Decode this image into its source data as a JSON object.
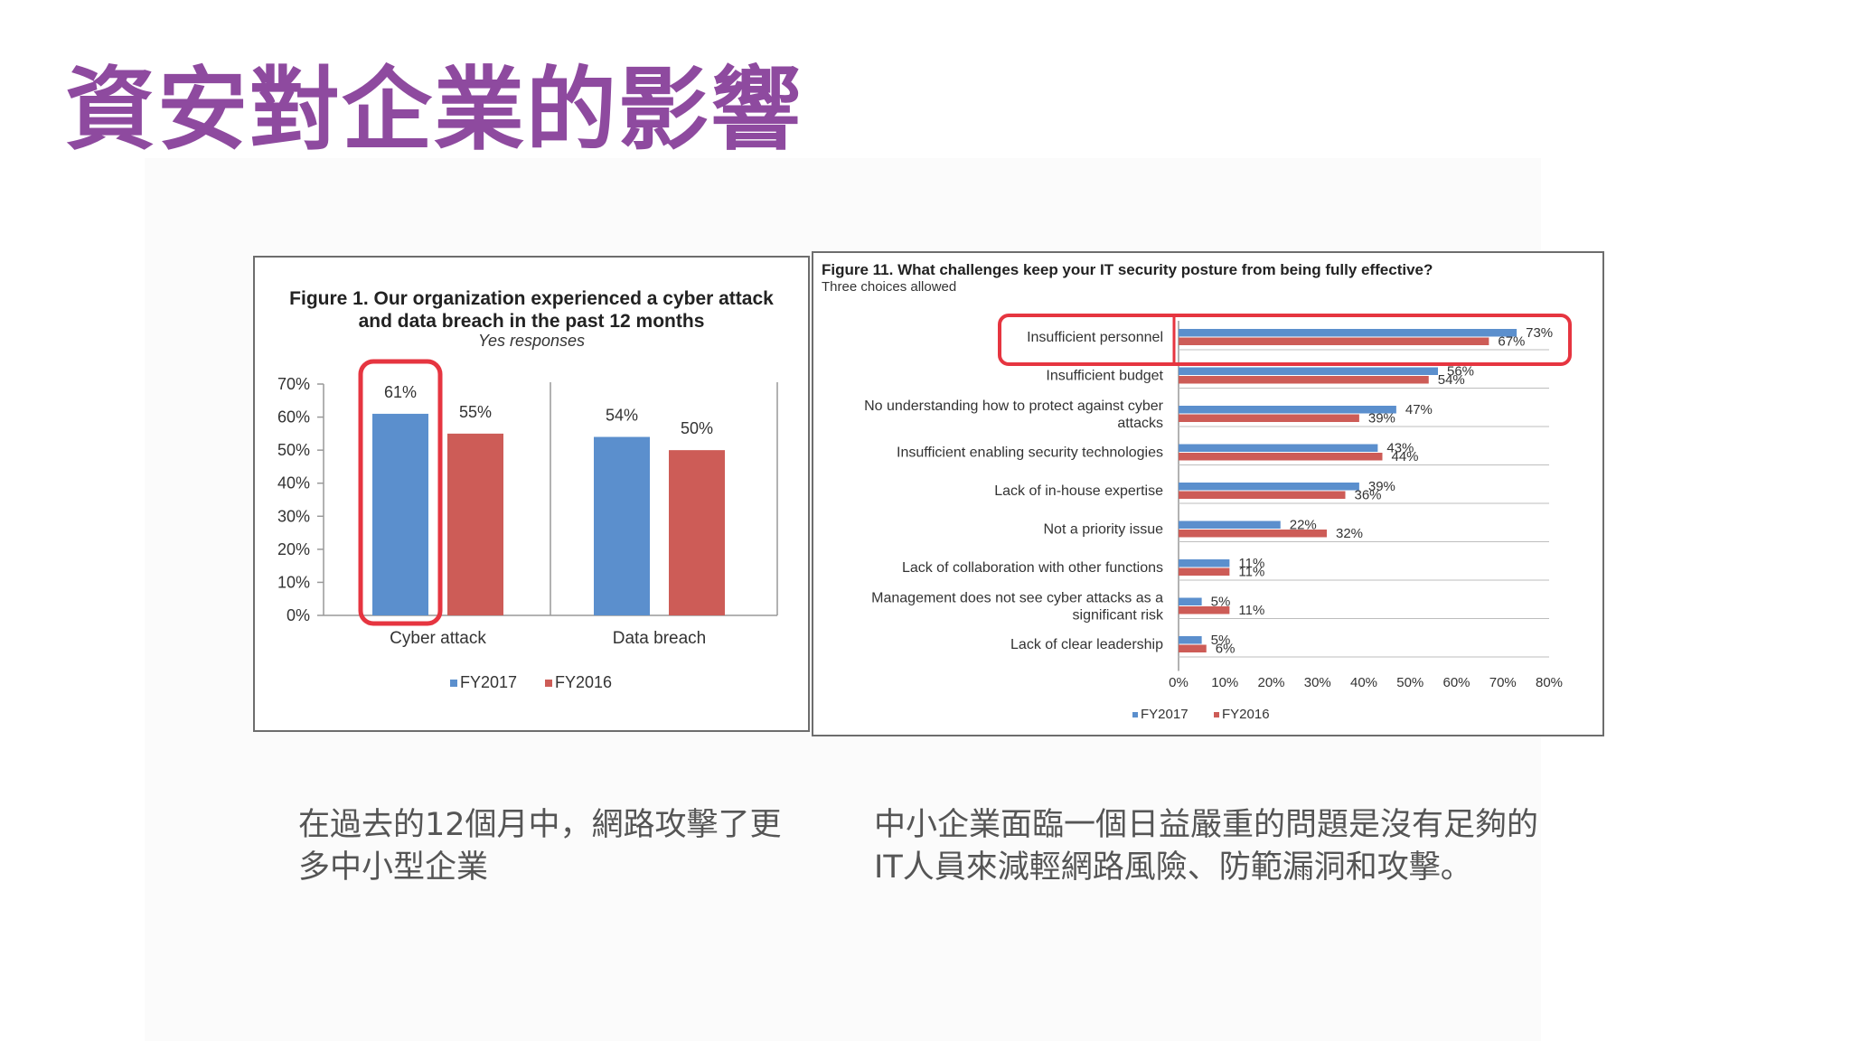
{
  "slide": {
    "title": "資安對企業的影響",
    "caption_left": "在過去的12個月中，網路攻擊了更多中小型企業",
    "caption_right": "中小企業面臨一個日益嚴重的問題是沒有足夠的IT人員來減輕網路風險、防範漏洞和攻擊。"
  },
  "colors": {
    "title": "#8e4a9f",
    "fy2017": "#5b8fcd",
    "fy2016": "#cd5c57",
    "highlight": "#e63540"
  },
  "chart_data": [
    {
      "type": "bar",
      "title_bold": "Figure 1",
      "title_rest": ". Our organization experienced a cyber attack",
      "title_line2": "and data breach in the past 12 months",
      "subtitle": "Yes responses",
      "categories": [
        "Cyber attack",
        "Data breach"
      ],
      "series": [
        {
          "name": "FY2017",
          "values": [
            61,
            54
          ]
        },
        {
          "name": "FY2016",
          "values": [
            55,
            50
          ]
        }
      ],
      "value_suffix": "%",
      "ylim": [
        0,
        70
      ],
      "yticks": [
        "0%",
        "10%",
        "20%",
        "30%",
        "40%",
        "50%",
        "60%",
        "70%"
      ],
      "legend": "bottom",
      "highlighted": "Cyber attack FY2017"
    },
    {
      "type": "bar",
      "orientation": "horizontal",
      "title_bold": "Figure 11",
      "title_rest": ". What challenges keep your IT security posture from being fully effective?",
      "subtitle": "Three choices allowed",
      "categories": [
        [
          "Insufficient personnel"
        ],
        [
          "Insufficient budget"
        ],
        [
          "No understanding how to protect against cyber",
          "attacks"
        ],
        [
          "Insufficient enabling security technologies"
        ],
        [
          "Lack of in-house expertise"
        ],
        [
          "Not a priority issue"
        ],
        [
          "Lack of collaboration with other functions"
        ],
        [
          "Management does not see cyber attacks as a",
          "significant risk"
        ],
        [
          "Lack of clear leadership"
        ]
      ],
      "series": [
        {
          "name": "FY2017",
          "values": [
            73,
            56,
            47,
            43,
            39,
            22,
            11,
            5,
            5
          ]
        },
        {
          "name": "FY2016",
          "values": [
            67,
            54,
            39,
            44,
            36,
            32,
            11,
            11,
            6
          ]
        }
      ],
      "value_suffix": "%",
      "xlim": [
        0,
        80
      ],
      "xticks": [
        "0%",
        "10%",
        "20%",
        "30%",
        "40%",
        "50%",
        "60%",
        "70%",
        "80%"
      ],
      "legend": "bottom",
      "highlighted": "Insufficient personnel"
    }
  ]
}
